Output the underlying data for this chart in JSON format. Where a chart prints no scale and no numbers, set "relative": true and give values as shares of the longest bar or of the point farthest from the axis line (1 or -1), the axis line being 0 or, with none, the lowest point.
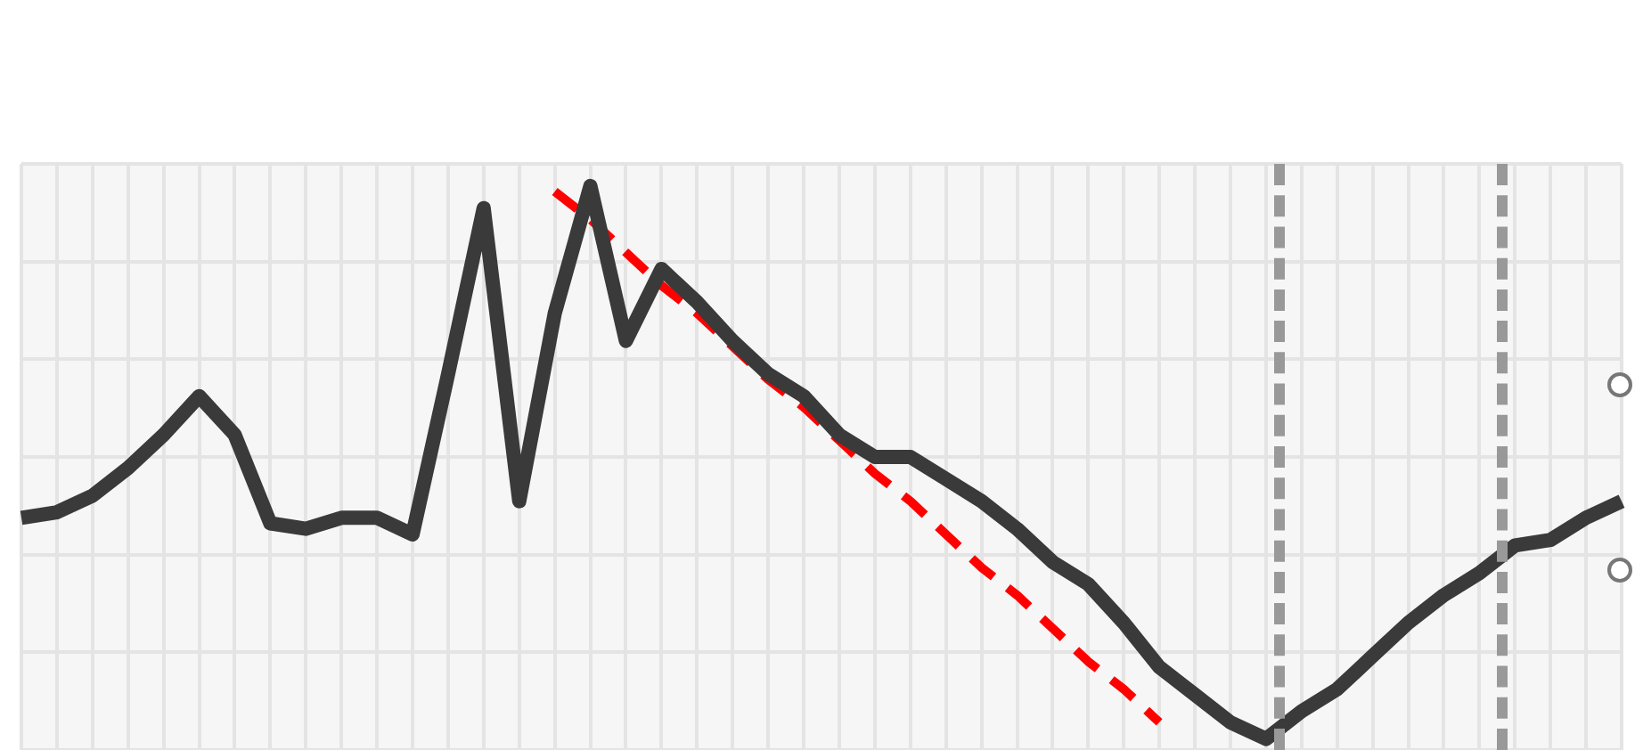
{
  "chart_data": {
    "type": "line",
    "relative": true,
    "grid": true,
    "legend": false,
    "marker": "none",
    "categories": [
      null,
      null,
      null,
      null,
      null,
      null,
      null,
      null,
      null,
      null,
      null,
      null,
      null,
      null,
      null,
      null,
      null,
      null,
      null,
      null,
      null,
      null,
      null,
      null,
      null,
      null,
      null,
      null,
      null,
      null,
      null,
      null,
      null,
      null,
      null,
      null,
      null,
      null,
      null,
      null,
      null,
      null,
      null,
      null,
      null,
      null
    ],
    "series": [
      {
        "color": "#3a3a3a",
        "line_style": "solid",
        "values": [
          0.4,
          0.41,
          0.44,
          0.49,
          0.55,
          0.62,
          0.55,
          0.39,
          0.38,
          0.4,
          0.4,
          0.37,
          0.66,
          0.96,
          0.43,
          0.77,
          1,
          0.72,
          0.85,
          0.79,
          0.72,
          0.66,
          0.62,
          0.55,
          0.51,
          0.51,
          0.47,
          0.43,
          0.38,
          0.32,
          0.28,
          0.21,
          0.13,
          0.08,
          0.03,
          0,
          0.05,
          0.09,
          0.15,
          0.21,
          0.26,
          0.3,
          0.35,
          0.36,
          0.4,
          0.43
        ]
      },
      {
        "color": "#ff0000",
        "line_style": "dashed",
        "values": [
          null,
          null,
          null,
          null,
          null,
          null,
          null,
          null,
          null,
          null,
          null,
          null,
          null,
          null,
          null,
          0.99,
          0.94,
          0.88,
          0.82,
          0.77,
          0.71,
          0.65,
          0.6,
          0.54,
          0.48,
          0.43,
          0.37,
          0.31,
          0.26,
          0.2,
          0.14,
          0.09,
          0.03,
          null,
          null,
          null,
          null,
          null,
          null,
          null,
          null,
          null,
          null,
          null,
          null,
          null
        ]
      }
    ]
  }
}
